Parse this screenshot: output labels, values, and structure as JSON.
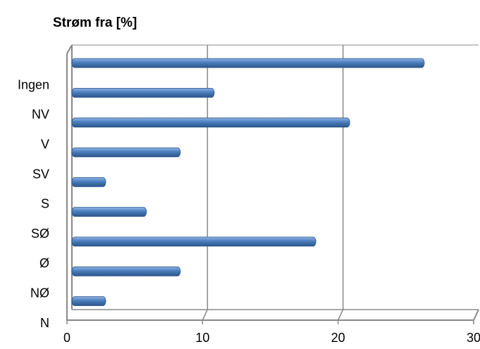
{
  "chart_data": {
    "type": "bar",
    "orientation": "horizontal",
    "title": "Strøm fra [%]",
    "categories": [
      "N",
      "NØ",
      "Ø",
      "SØ",
      "S",
      "SV",
      "V",
      "NV",
      "Ingen"
    ],
    "values": [
      2.5,
      8,
      18,
      5.5,
      2.5,
      8,
      20.5,
      10.5,
      26
    ],
    "color": "#4a7ebb",
    "xlim": [
      0,
      30
    ],
    "xticks": [
      0,
      10,
      20,
      30
    ],
    "grid": true
  }
}
